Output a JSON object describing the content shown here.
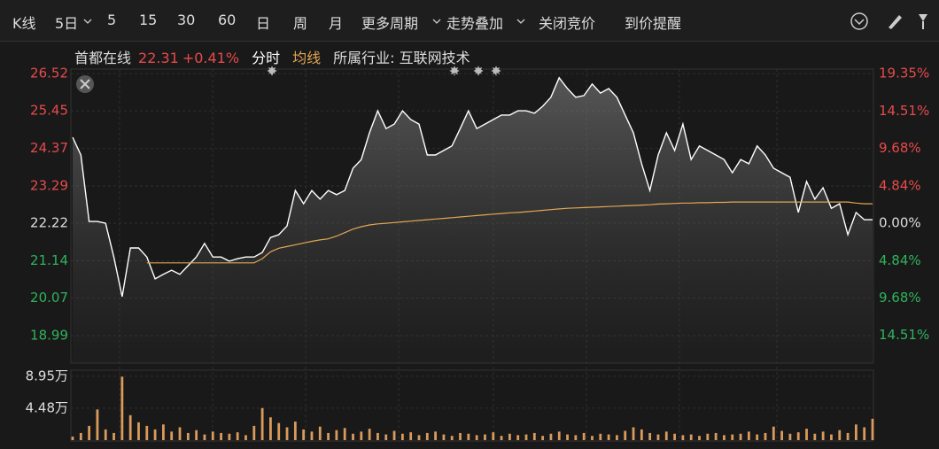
{
  "toolbar": [
    "K线",
    "5日",
    "5",
    "15",
    "30",
    "60",
    "日",
    "周",
    "月",
    "更多周期",
    "走势叠加",
    "关闭竞价",
    "到价提醒"
  ],
  "info": {
    "name": "首都在线",
    "price": "22.31",
    "change": "+0.41%",
    "industry": "所属行业: 互联网技术"
  },
  "chart_data": [
    {
      "type": "line",
      "series": [
        {
          "name": "分时",
          "color": "#ffffff",
          "values": [
            24.69,
            24.18,
            22.27,
            22.27,
            22.22,
            21.25,
            20.11,
            21.51,
            21.51,
            21.25,
            20.62,
            20.75,
            20.87,
            20.75,
            21.0,
            21.25,
            21.64,
            21.25,
            21.25,
            21.13,
            21.2,
            21.25,
            21.25,
            21.38,
            21.81,
            21.89,
            22.14,
            23.16,
            22.78,
            23.16,
            22.91,
            23.16,
            23.04,
            23.16,
            23.8,
            24.05,
            24.82,
            25.45,
            24.94,
            25.07,
            25.45,
            25.2,
            25.07,
            24.18,
            24.18,
            24.31,
            24.44,
            24.94,
            25.45,
            24.94,
            25.07,
            25.2,
            25.33,
            25.33,
            25.45,
            25.45,
            25.38,
            25.58,
            25.84,
            26.4,
            26.09,
            25.84,
            25.89,
            26.22,
            25.96,
            26.09,
            25.84,
            25.33,
            24.82,
            23.93,
            23.16,
            24.18,
            24.82,
            24.31,
            25.07,
            24.05,
            24.44,
            24.31,
            24.18,
            24.05,
            23.67,
            24.05,
            23.93,
            24.44,
            24.18,
            23.8,
            23.67,
            23.54,
            22.53,
            23.42,
            22.91,
            23.24,
            22.65,
            22.78,
            21.89,
            22.53,
            22.32,
            22.32
          ]
        },
        {
          "name": "均线",
          "color": "#e3a653",
          "values": [
            null,
            null,
            null,
            null,
            null,
            null,
            null,
            null,
            null,
            21.08,
            21.08,
            21.08,
            21.08,
            21.08,
            21.08,
            21.08,
            21.08,
            21.08,
            21.08,
            21.08,
            21.08,
            21.08,
            21.08,
            21.2,
            21.4,
            21.5,
            21.55,
            21.6,
            21.65,
            21.7,
            21.74,
            21.77,
            21.85,
            21.95,
            22.05,
            22.12,
            22.17,
            22.2,
            22.22,
            22.24,
            22.26,
            22.28,
            22.3,
            22.32,
            22.34,
            22.36,
            22.38,
            22.4,
            22.42,
            22.44,
            22.46,
            22.48,
            22.5,
            22.52,
            22.53,
            22.55,
            22.57,
            22.59,
            22.61,
            22.63,
            22.65,
            22.66,
            22.67,
            22.68,
            22.69,
            22.7,
            22.71,
            22.72,
            22.73,
            22.74,
            22.75,
            22.77,
            22.78,
            22.79,
            22.8,
            22.8,
            22.81,
            22.81,
            22.82,
            22.82,
            22.83,
            22.83,
            22.83,
            22.83,
            22.83,
            22.83,
            22.83,
            22.83,
            22.83,
            22.83,
            22.83,
            22.83,
            22.83,
            22.83,
            22.83,
            22.8,
            22.78,
            22.78
          ]
        }
      ],
      "ylim": [
        18.2,
        26.65
      ],
      "yticks": [
        26.52,
        25.45,
        24.37,
        23.29,
        22.22,
        21.14,
        20.07,
        18.99
      ],
      "y2lim": [
        -18.09,
        19.94
      ],
      "y2ticks": [
        {
          "value": 19.35,
          "label": "19.35%"
        },
        {
          "value": 14.51,
          "label": "14.51%"
        },
        {
          "value": 9.68,
          "label": "9.68%"
        },
        {
          "value": 4.84,
          "label": "4.84%"
        },
        {
          "value": 0,
          "label": "0.00%"
        },
        {
          "value": -4.84,
          "label": "4.84%"
        },
        {
          "value": -9.68,
          "label": "9.68%"
        },
        {
          "value": -14.51,
          "label": "14.51%"
        }
      ],
      "grid": true
    },
    {
      "type": "bar",
      "color": "#d99a5b",
      "values": [
        0.5,
        1.0,
        2.0,
        4.3,
        1.5,
        1.0,
        8.9,
        3.5,
        2.5,
        2.0,
        1.5,
        2.2,
        1.2,
        1.8,
        1.0,
        1.4,
        0.8,
        1.2,
        1.0,
        0.9,
        1.1,
        0.7,
        2.0,
        4.5,
        3.2,
        2.4,
        1.8,
        2.6,
        1.5,
        1.2,
        1.9,
        1.0,
        1.4,
        1.7,
        0.9,
        1.2,
        1.6,
        1.0,
        0.8,
        1.3,
        0.9,
        1.1,
        0.7,
        1.0,
        1.2,
        0.8,
        0.6,
        1.0,
        0.9,
        0.7,
        0.8,
        1.1,
        0.6,
        0.9,
        0.7,
        0.8,
        1.0,
        0.6,
        0.9,
        1.2,
        0.8,
        0.7,
        1.0,
        0.6,
        0.9,
        0.8,
        0.7,
        1.3,
        1.8,
        1.5,
        1.0,
        0.8,
        1.2,
        0.9,
        0.7,
        0.8,
        0.6,
        0.9,
        1.0,
        0.7,
        0.8,
        0.9,
        1.2,
        0.8,
        1.0,
        1.9,
        1.3,
        0.9,
        1.1,
        1.6,
        0.9,
        1.2,
        0.8,
        1.4,
        1.0,
        2.2,
        1.8,
        3.0
      ],
      "ylim": [
        0,
        9.56
      ],
      "yticks": [
        {
          "value": 8.95,
          "label": "8.95万"
        },
        {
          "value": 4.48,
          "label": "4.48万"
        }
      ]
    }
  ]
}
